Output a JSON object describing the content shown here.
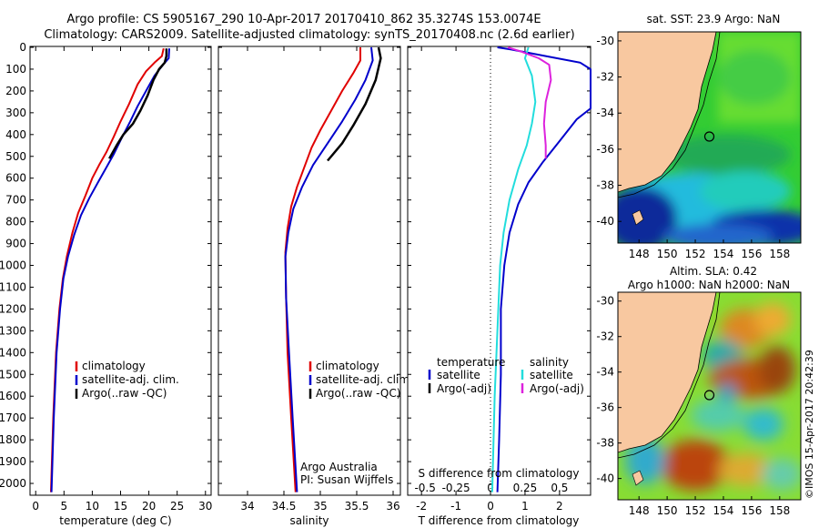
{
  "header": {
    "line1": "Argo profile: CS 5905167_290 10-Apr-2017 20170410_862 35.3274S 153.0074E",
    "line2": "Climatology: CARS2009. Satellite-adjusted climatology: synTS_20170408.nc (2.6d earlier)"
  },
  "colors": {
    "climatology": "#e00000",
    "satellite": "#0000cc",
    "argo": "#000000",
    "cyan": "#22dddd",
    "magenta": "#dd22dd",
    "land": "#f8c8a0"
  },
  "chart_data": [
    {
      "type": "line",
      "id": "temperature",
      "xlabel": "temperature (deg C)",
      "xlim": [
        -1,
        31
      ],
      "xticks": [
        0,
        5,
        10,
        15,
        20,
        25,
        30
      ],
      "ylim": [
        0,
        2050
      ],
      "yticks": [
        0,
        100,
        200,
        300,
        400,
        500,
        600,
        700,
        800,
        900,
        1000,
        1100,
        1200,
        1300,
        1400,
        1500,
        1600,
        1700,
        1800,
        1900,
        2000
      ],
      "legend": [
        "climatology",
        "satellite-adj. clim.",
        "Argo(..raw -QC)"
      ],
      "series": [
        {
          "name": "climatology",
          "color_key": "climatology",
          "points": [
            [
              22.6,
              5
            ],
            [
              22.3,
              40
            ],
            [
              21.0,
              70
            ],
            [
              19.5,
              110
            ],
            [
              18.0,
              170
            ],
            [
              16.5,
              260
            ],
            [
              15.0,
              340
            ],
            [
              13.8,
              410
            ],
            [
              12.5,
              480
            ],
            [
              11.2,
              540
            ],
            [
              10.0,
              600
            ],
            [
              8.8,
              680
            ],
            [
              7.5,
              760
            ],
            [
              6.5,
              850
            ],
            [
              5.5,
              960
            ],
            [
              4.8,
              1060
            ],
            [
              4.2,
              1200
            ],
            [
              3.6,
              1400
            ],
            [
              3.1,
              1700
            ],
            [
              2.7,
              2040
            ]
          ]
        },
        {
          "name": "satellite-adj. clim.",
          "color_key": "satellite",
          "points": [
            [
              23.6,
              5
            ],
            [
              23.5,
              50
            ],
            [
              22.5,
              80
            ],
            [
              21.0,
              130
            ],
            [
              19.5,
              200
            ],
            [
              18.0,
              270
            ],
            [
              16.7,
              340
            ],
            [
              15.3,
              410
            ],
            [
              13.8,
              490
            ],
            [
              12.5,
              550
            ],
            [
              11.2,
              610
            ],
            [
              9.5,
              690
            ],
            [
              8.0,
              770
            ],
            [
              6.8,
              860
            ],
            [
              5.7,
              960
            ],
            [
              4.9,
              1060
            ],
            [
              4.3,
              1200
            ],
            [
              3.7,
              1400
            ],
            [
              3.2,
              1700
            ],
            [
              2.8,
              2040
            ]
          ]
        },
        {
          "name": "Argo(..raw -QC)",
          "color_key": "argo",
          "points": [
            [
              23.1,
              5
            ],
            [
              23.1,
              40
            ],
            [
              22.8,
              70
            ],
            [
              21.8,
              100
            ],
            [
              20.8,
              150
            ],
            [
              19.8,
              220
            ],
            [
              18.5,
              290
            ],
            [
              17.2,
              350
            ],
            [
              15.5,
              400
            ],
            [
              14.3,
              450
            ],
            [
              13.0,
              510
            ]
          ]
        }
      ]
    },
    {
      "type": "line",
      "id": "salinity",
      "xlabel": "salinity",
      "xlim": [
        33.6,
        36.1
      ],
      "xticks": [
        34,
        34.5,
        35,
        35.5,
        36
      ],
      "ylim": [
        0,
        2050
      ],
      "legend": [
        "climatology",
        "satellite-adj. clim.",
        "Argo(..raw -QC)"
      ],
      "annotations": [
        "Argo Australia",
        "PI: Susan Wijffels"
      ],
      "series": [
        {
          "name": "climatology",
          "color_key": "climatology",
          "points": [
            [
              35.55,
              0
            ],
            [
              35.55,
              60
            ],
            [
              35.45,
              120
            ],
            [
              35.3,
              200
            ],
            [
              35.15,
              290
            ],
            [
              35.0,
              380
            ],
            [
              34.88,
              460
            ],
            [
              34.78,
              550
            ],
            [
              34.68,
              640
            ],
            [
              34.6,
              730
            ],
            [
              34.55,
              830
            ],
            [
              34.52,
              940
            ],
            [
              34.53,
              1150
            ],
            [
              34.55,
              1400
            ],
            [
              34.6,
              1700
            ],
            [
              34.66,
              2040
            ]
          ]
        },
        {
          "name": "satellite-adj. clim.",
          "color_key": "satellite",
          "points": [
            [
              35.7,
              0
            ],
            [
              35.72,
              60
            ],
            [
              35.62,
              150
            ],
            [
              35.48,
              240
            ],
            [
              35.3,
              340
            ],
            [
              35.1,
              440
            ],
            [
              34.9,
              540
            ],
            [
              34.75,
              640
            ],
            [
              34.63,
              740
            ],
            [
              34.56,
              850
            ],
            [
              34.52,
              960
            ],
            [
              34.53,
              1150
            ],
            [
              34.57,
              1400
            ],
            [
              34.62,
              1700
            ],
            [
              34.68,
              2040
            ]
          ]
        },
        {
          "name": "Argo(..raw -QC)",
          "color_key": "argo",
          "points": [
            [
              35.8,
              0
            ],
            [
              35.83,
              50
            ],
            [
              35.76,
              150
            ],
            [
              35.62,
              260
            ],
            [
              35.45,
              360
            ],
            [
              35.3,
              440
            ],
            [
              35.1,
              520
            ]
          ]
        }
      ]
    },
    {
      "type": "line",
      "id": "difference",
      "xlabel": "T difference from climatology",
      "xlabel_top": "S difference from climatology",
      "xlim": [
        -2.4,
        2.9
      ],
      "xticks": [
        -2,
        -1,
        0,
        1,
        2
      ],
      "xticks_top": [
        -0.5,
        -0.25,
        0,
        0.25,
        0.5
      ],
      "legend_titles": [
        "temperature",
        "salinity"
      ],
      "legend": [
        "satellite",
        "Argo(-adj)",
        "satellite",
        "Argo(-adj)"
      ],
      "series": [
        {
          "name": "T satellite",
          "color_key": "satellite",
          "points": [
            [
              0.2,
              0
            ],
            [
              0.6,
              10
            ],
            [
              1.6,
              40
            ],
            [
              2.6,
              70
            ],
            [
              2.9,
              100
            ],
            [
              2.9,
              280
            ],
            [
              2.5,
              330
            ],
            [
              2.0,
              430
            ],
            [
              1.5,
              530
            ],
            [
              1.1,
              620
            ],
            [
              0.8,
              720
            ],
            [
              0.55,
              850
            ],
            [
              0.4,
              1000
            ],
            [
              0.3,
              1200
            ],
            [
              0.3,
              1500
            ],
            [
              0.25,
              1800
            ],
            [
              0.2,
              2040
            ]
          ]
        },
        {
          "name": "T Argo(-adj)",
          "color_key": "argo",
          "points": []
        },
        {
          "name": "S satellite",
          "color_key": "cyan",
          "points": [
            [
              1.1,
              0
            ],
            [
              1.0,
              50
            ],
            [
              1.2,
              130
            ],
            [
              1.3,
              250
            ],
            [
              1.2,
              350
            ],
            [
              1.05,
              450
            ],
            [
              0.8,
              560
            ],
            [
              0.55,
              700
            ],
            [
              0.38,
              850
            ],
            [
              0.28,
              1000
            ],
            [
              0.2,
              1300
            ],
            [
              0.12,
              1600
            ],
            [
              0.05,
              2040
            ]
          ]
        },
        {
          "name": "S Argo(-adj)",
          "color_key": "magenta",
          "points": [
            [
              0.5,
              0
            ],
            [
              0.9,
              20
            ],
            [
              1.4,
              50
            ],
            [
              1.7,
              80
            ],
            [
              1.75,
              150
            ],
            [
              1.6,
              250
            ],
            [
              1.55,
              350
            ],
            [
              1.6,
              450
            ],
            [
              1.6,
              510
            ]
          ]
        }
      ]
    }
  ],
  "maps": [
    {
      "title": "sat. SST: 23.9 Argo: NaN",
      "title2": "",
      "lon_ticks": [
        "148",
        "150",
        "152",
        "154",
        "156",
        "158"
      ],
      "lat_ticks": [
        "-30",
        "-32",
        "-34",
        "-36",
        "-38",
        "-40"
      ],
      "xlim": [
        146.5,
        159.5
      ],
      "ylim": [
        -41.2,
        -29.5
      ],
      "marker": [
        153.0,
        -35.3
      ]
    },
    {
      "title": "Altim. SLA: 0.42",
      "title2": "Argo h1000: NaN h2000: NaN",
      "lon_ticks": [
        "148",
        "150",
        "152",
        "154",
        "156",
        "158"
      ],
      "lat_ticks": [
        "-30",
        "-32",
        "-34",
        "-36",
        "-38",
        "-40"
      ],
      "xlim": [
        146.5,
        159.5
      ],
      "ylim": [
        -41.2,
        -29.5
      ],
      "marker": [
        153.0,
        -35.3
      ]
    }
  ],
  "credit": "©IMOS 15-Apr-2017 20:42:39"
}
